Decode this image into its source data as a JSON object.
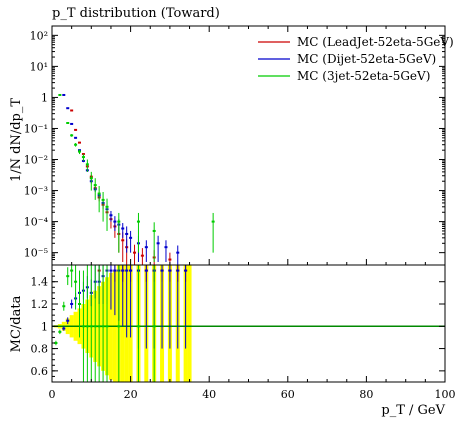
{
  "chart_data": [
    {
      "type": "scatter",
      "title": "p_T distribution (Toward)",
      "xlabel": "p_T / GeV",
      "ylabel": "1/N dN/dp_T",
      "xlim": [
        0,
        100
      ],
      "ylim": [
        4e-06,
        200
      ],
      "yscale": "log",
      "y_tick_labels": [
        "10⁻⁵",
        "10⁻⁴",
        "10⁻³",
        "10⁻²",
        "10⁻¹",
        "1",
        "10¹",
        "10²"
      ],
      "legend_position": "top-right",
      "series": [
        {
          "name": "MC (LeadJet-52eta-5GeV)",
          "color": "#cc0000",
          "points": [
            {
              "x": 5,
              "y": 0.38,
              "err": 0.01
            },
            {
              "x": 6,
              "y": 0.09,
              "err": 0.005
            },
            {
              "x": 7,
              "y": 0.035,
              "err": 0.002
            },
            {
              "x": 8,
              "y": 0.015,
              "err": 0.001
            },
            {
              "x": 9,
              "y": 0.006,
              "err": 0.0006
            },
            {
              "x": 10,
              "y": 0.0028,
              "err": 0.0004
            },
            {
              "x": 11,
              "y": 0.0012,
              "err": 0.0002
            },
            {
              "x": 12,
              "y": 0.0006,
              "err": 0.00015
            },
            {
              "x": 13,
              "y": 0.00035,
              "err": 0.0001
            },
            {
              "x": 14,
              "y": 0.0002,
              "err": 8e-05
            },
            {
              "x": 15,
              "y": 0.00012,
              "err": 6e-05
            },
            {
              "x": 16,
              "y": 7e-05,
              "err": 4e-05
            },
            {
              "x": 17,
              "y": 4e-05,
              "err": 3e-05
            },
            {
              "x": 18,
              "y": 2.5e-05,
              "err": 2e-05
            },
            {
              "x": 19,
              "y": 1.5e-05,
              "err": 1.2e-05
            },
            {
              "x": 21,
              "y": 1e-05,
              "err": 8e-06
            },
            {
              "x": 23,
              "y": 8e-06,
              "err": 6e-06
            },
            {
              "x": 26,
              "y": 7e-06,
              "err": 5e-06
            },
            {
              "x": 30,
              "y": 6e-06,
              "err": 4e-06
            }
          ]
        },
        {
          "name": "MC (Dijet-52eta-5GeV)",
          "color": "#0000cc",
          "points": [
            {
              "x": 3,
              "y": 1.2,
              "err": 0.02
            },
            {
              "x": 4,
              "y": 0.45,
              "err": 0.01
            },
            {
              "x": 5,
              "y": 0.14,
              "err": 0.005
            },
            {
              "x": 6,
              "y": 0.05,
              "err": 0.003
            },
            {
              "x": 7,
              "y": 0.02,
              "err": 0.0015
            },
            {
              "x": 8,
              "y": 0.009,
              "err": 0.0008
            },
            {
              "x": 9,
              "y": 0.0045,
              "err": 0.0005
            },
            {
              "x": 10,
              "y": 0.002,
              "err": 0.0003
            },
            {
              "x": 11,
              "y": 0.0011,
              "err": 0.0002
            },
            {
              "x": 12,
              "y": 0.0007,
              "err": 0.00015
            },
            {
              "x": 13,
              "y": 0.0004,
              "err": 0.0001
            },
            {
              "x": 14,
              "y": 0.00025,
              "err": 8e-05
            },
            {
              "x": 15,
              "y": 0.00016,
              "err": 6e-05
            },
            {
              "x": 16,
              "y": 0.0001,
              "err": 5e-05
            },
            {
              "x": 17,
              "y": 8e-05,
              "err": 4e-05
            },
            {
              "x": 18,
              "y": 6e-05,
              "err": 3e-05
            },
            {
              "x": 19,
              "y": 4e-05,
              "err": 3e-05
            },
            {
              "x": 20,
              "y": 3e-05,
              "err": 2e-05
            },
            {
              "x": 22,
              "y": 2e-05,
              "err": 1.5e-05
            },
            {
              "x": 24,
              "y": 1.5e-05,
              "err": 1e-05
            },
            {
              "x": 27,
              "y": 2e-05,
              "err": 1.5e-05
            },
            {
              "x": 29,
              "y": 1.5e-05,
              "err": 1e-05
            },
            {
              "x": 32,
              "y": 1e-05,
              "err": 7e-06
            }
          ]
        },
        {
          "name": "MC (3jet-52eta-5GeV)",
          "color": "#00cc00",
          "points": [
            {
              "x": 2,
              "y": 1.2,
              "err": 0.03
            },
            {
              "x": 4,
              "y": 0.15,
              "err": 0.01
            },
            {
              "x": 5,
              "y": 0.06,
              "err": 0.006
            },
            {
              "x": 6,
              "y": 0.03,
              "err": 0.004
            },
            {
              "x": 7,
              "y": 0.018,
              "err": 0.003
            },
            {
              "x": 8,
              "y": 0.012,
              "err": 0.003
            },
            {
              "x": 9,
              "y": 0.007,
              "err": 0.003
            },
            {
              "x": 10,
              "y": 0.0025,
              "err": 0.0015
            },
            {
              "x": 11,
              "y": 0.0015,
              "err": 0.001
            },
            {
              "x": 12,
              "y": 0.0008,
              "err": 0.0006
            },
            {
              "x": 13,
              "y": 0.0005,
              "err": 0.0004
            },
            {
              "x": 14,
              "y": 0.0003,
              "err": 0.00025
            },
            {
              "x": 17,
              "y": 0.0001,
              "err": 9e-05
            },
            {
              "x": 22,
              "y": 0.0001,
              "err": 9e-05
            },
            {
              "x": 26,
              "y": 5e-05,
              "err": 4.5e-05
            },
            {
              "x": 41,
              "y": 0.0001,
              "err": 9e-05
            }
          ]
        }
      ]
    },
    {
      "type": "scatter",
      "xlabel": "p_T / GeV",
      "ylabel": "MC/data",
      "xlim": [
        0,
        100
      ],
      "ylim": [
        0.5,
        1.55
      ],
      "x_tick_labels": [
        "0",
        "20",
        "40",
        "60",
        "80",
        "100"
      ],
      "y_tick_labels": [
        "0.6",
        "0.8",
        "1",
        "1.2",
        "1.4"
      ],
      "reference_line": 1,
      "reference_line_color": "#008800",
      "data_band_color": "#ffff00",
      "data_band_halfwidth": [
        {
          "x": 1,
          "e": 0.01
        },
        {
          "x": 2,
          "e": 0.02
        },
        {
          "x": 3,
          "e": 0.04
        },
        {
          "x": 4,
          "e": 0.07
        },
        {
          "x": 5,
          "e": 0.1
        },
        {
          "x": 6,
          "e": 0.13
        },
        {
          "x": 7,
          "e": 0.16
        },
        {
          "x": 8,
          "e": 0.2
        },
        {
          "x": 9,
          "e": 0.24
        },
        {
          "x": 10,
          "e": 0.28
        },
        {
          "x": 11,
          "e": 0.32
        },
        {
          "x": 12,
          "e": 0.36
        },
        {
          "x": 13,
          "e": 0.4
        },
        {
          "x": 14,
          "e": 0.44
        },
        {
          "x": 15,
          "e": 0.48
        },
        {
          "x": 16,
          "e": 0.5
        },
        {
          "x": 17,
          "e": 0.55
        },
        {
          "x": 18,
          "e": 0.55
        },
        {
          "x": 19,
          "e": 0.55
        },
        {
          "x": 20,
          "e": 0.55
        },
        {
          "x": 22,
          "e": 0.55
        },
        {
          "x": 24,
          "e": 0.55
        },
        {
          "x": 26,
          "e": 0.55
        },
        {
          "x": 28,
          "e": 0.55
        },
        {
          "x": 30,
          "e": 0.55
        },
        {
          "x": 32,
          "e": 0.55
        },
        {
          "x": 34,
          "e": 0.55
        },
        {
          "x": 35,
          "e": 0.55
        }
      ],
      "series": [
        {
          "color": "#cc0000",
          "points": [
            {
              "x": 12,
              "y": 1.5,
              "err": 0.1
            },
            {
              "x": 14,
              "y": 1.5,
              "err": 0.1
            },
            {
              "x": 16,
              "y": 1.5,
              "err": 0.1
            },
            {
              "x": 18,
              "y": 1.5,
              "err": 0.1
            },
            {
              "x": 20,
              "y": 1.5,
              "err": 0.1
            },
            {
              "x": 22,
              "y": 1.5,
              "err": 0.1
            },
            {
              "x": 24,
              "y": 1.5,
              "err": 0.1
            },
            {
              "x": 26,
              "y": 1.5,
              "err": 0.1
            },
            {
              "x": 28,
              "y": 1.5,
              "err": 0.1
            },
            {
              "x": 30,
              "y": 1.5,
              "err": 0.1
            },
            {
              "x": 32,
              "y": 1.5,
              "err": 0.1
            },
            {
              "x": 34,
              "y": 1.5,
              "err": 0.1
            }
          ]
        },
        {
          "color": "#0000cc",
          "points": [
            {
              "x": 3,
              "y": 0.98,
              "err": 0.02
            },
            {
              "x": 4,
              "y": 1.05,
              "err": 0.03
            },
            {
              "x": 5,
              "y": 1.2,
              "err": 0.04
            },
            {
              "x": 6,
              "y": 1.25,
              "err": 0.05
            },
            {
              "x": 7,
              "y": 1.3,
              "err": 0.06
            },
            {
              "x": 8,
              "y": 1.32,
              "err": 0.08
            },
            {
              "x": 9,
              "y": 1.35,
              "err": 0.1
            },
            {
              "x": 10,
              "y": 1.3,
              "err": 0.12
            },
            {
              "x": 11,
              "y": 1.4,
              "err": 0.15
            },
            {
              "x": 12,
              "y": 1.4,
              "err": 0.2
            },
            {
              "x": 13,
              "y": 1.45,
              "err": 0.25
            },
            {
              "x": 14,
              "y": 1.5,
              "err": 0.3
            },
            {
              "x": 15,
              "y": 1.5,
              "err": 0.35
            },
            {
              "x": 16,
              "y": 1.5,
              "err": 0.4
            },
            {
              "x": 17,
              "y": 1.5,
              "err": 0.45
            },
            {
              "x": 18,
              "y": 1.5,
              "err": 0.5
            },
            {
              "x": 19,
              "y": 1.5,
              "err": 0.6
            },
            {
              "x": 20,
              "y": 1.5,
              "err": 0.6
            },
            {
              "x": 22,
              "y": 1.5,
              "err": 0.7
            },
            {
              "x": 24,
              "y": 1.5,
              "err": 0.7
            },
            {
              "x": 26,
              "y": 1.5,
              "err": 0.7
            },
            {
              "x": 28,
              "y": 1.5,
              "err": 0.7
            },
            {
              "x": 30,
              "y": 1.5,
              "err": 0.7
            },
            {
              "x": 32,
              "y": 1.5,
              "err": 0.7
            },
            {
              "x": 34,
              "y": 1.5,
              "err": 0.7
            }
          ]
        },
        {
          "color": "#00cc00",
          "points": [
            {
              "x": 1,
              "y": 0.85,
              "err": 0.02
            },
            {
              "x": 2,
              "y": 0.95,
              "err": 0.02
            },
            {
              "x": 3,
              "y": 1.18,
              "err": 0.04
            },
            {
              "x": 4,
              "y": 1.45,
              "err": 0.08
            },
            {
              "x": 5,
              "y": 1.5,
              "err": 0.15
            },
            {
              "x": 6,
              "y": 1.4,
              "err": 0.25
            },
            {
              "x": 7,
              "y": 1.2,
              "err": 0.3
            },
            {
              "x": 8,
              "y": 1.0,
              "err": 0.5
            },
            {
              "x": 9,
              "y": 1.0,
              "err": 0.6
            },
            {
              "x": 10,
              "y": 1.0,
              "err": 0.6
            },
            {
              "x": 11,
              "y": 1.0,
              "err": 0.7
            },
            {
              "x": 12,
              "y": 1.0,
              "err": 0.7
            },
            {
              "x": 13,
              "y": 1.0,
              "err": 0.7
            },
            {
              "x": 14,
              "y": 1.0,
              "err": 0.7
            },
            {
              "x": 17,
              "y": 1.0,
              "err": 0.7
            },
            {
              "x": 22,
              "y": 1.0,
              "err": 0.7
            },
            {
              "x": 26,
              "y": 1.0,
              "err": 0.7
            }
          ]
        }
      ]
    }
  ]
}
